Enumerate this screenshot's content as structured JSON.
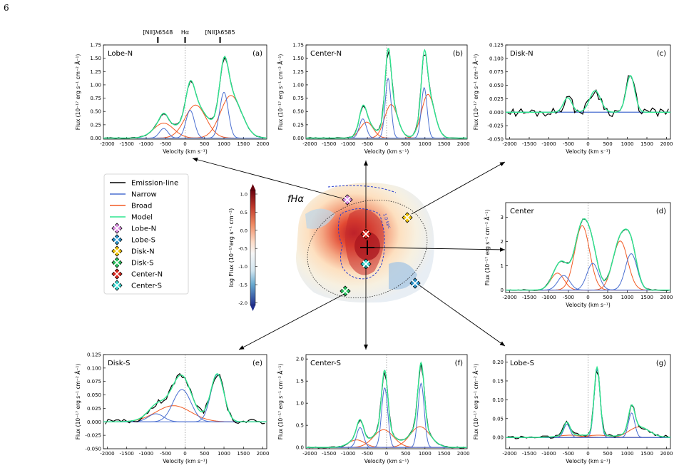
{
  "page": {
    "number": "6"
  },
  "lines": {
    "labels": [
      "[NII]λ6548",
      "Hα",
      "[NII]λ6585"
    ],
    "velocities": [
      -700,
      0,
      900
    ]
  },
  "xaxis": {
    "label": "Velocity (km s⁻¹)",
    "ticks": [
      -2000,
      -1500,
      -1000,
      -500,
      0,
      500,
      1000,
      1500,
      2000
    ]
  },
  "ylabel": "Flux (10⁻¹⁷ erg s⁻¹ cm⁻² Å⁻¹)",
  "colors": {
    "emission": "#000000",
    "narrow": "#4a6fd1",
    "broad": "#f25a23",
    "model": "#2ee58f"
  },
  "legend": [
    {
      "label": "Emission-line",
      "kind": "line",
      "color": "#000000"
    },
    {
      "label": "Narrow",
      "kind": "line",
      "color": "#4a6fd1"
    },
    {
      "label": "Broad",
      "kind": "line",
      "color": "#f25a23"
    },
    {
      "label": "Model",
      "kind": "line",
      "color": "#2ee58f"
    },
    {
      "label": "Lobe-N",
      "kind": "marker",
      "color": "#d98fe0"
    },
    {
      "label": "Lobe-S",
      "kind": "marker",
      "color": "#2a92c9"
    },
    {
      "label": "Disk-N",
      "kind": "marker",
      "color": "#f2c40c"
    },
    {
      "label": "Disk-S",
      "kind": "marker",
      "color": "#2bbf5e"
    },
    {
      "label": "Center-N",
      "kind": "marker",
      "color": "#d9261c"
    },
    {
      "label": "Center-S",
      "kind": "marker",
      "color": "#38d6cf"
    }
  ],
  "map": {
    "label": "fHα",
    "colorbar_label": "log Flux (10⁻¹⁷erg s⁻¹ cm⁻²)",
    "colorbar_ticks": [
      "1.0",
      "0.5",
      "0.0",
      "-0.5",
      "-1.0",
      "-1.5",
      "-2.0"
    ],
    "contour_label": "1.0 kpc"
  },
  "chart_data": [
    {
      "id": "a",
      "type": "line",
      "name": "Lobe-N",
      "tag": "(a)",
      "xlim": [
        -2100,
        2100
      ],
      "ylim": [
        -0.02,
        1.75
      ],
      "yticks": [
        "0.00",
        "0.25",
        "0.50",
        "0.75",
        "1.00",
        "1.25",
        "1.50",
        "1.75"
      ],
      "yvals": [
        0,
        0.25,
        0.5,
        0.75,
        1.0,
        1.25,
        1.5,
        1.75
      ],
      "narrow": [
        [
          -550,
          0.18,
          110
        ],
        [
          130,
          0.52,
          110
        ],
        [
          1000,
          0.86,
          110
        ]
      ],
      "broad": [
        [
          -550,
          0.28,
          260
        ],
        [
          270,
          0.62,
          270
        ],
        [
          1180,
          0.8,
          270
        ]
      ],
      "noise": 0.0,
      "show_lines": true
    },
    {
      "id": "b",
      "type": "line",
      "name": "Center-N",
      "tag": "(b)",
      "xlim": [
        -2100,
        2100
      ],
      "ylim": [
        -0.02,
        1.75
      ],
      "yticks": [
        "0.00",
        "0.25",
        "0.50",
        "0.75",
        "1.00",
        "1.25",
        "1.50",
        "1.75"
      ],
      "yvals": [
        0,
        0.25,
        0.5,
        0.75,
        1.0,
        1.25,
        1.5,
        1.75
      ],
      "narrow": [
        [
          -620,
          0.36,
          90
        ],
        [
          40,
          1.12,
          75
        ],
        [
          980,
          0.95,
          75
        ]
      ],
      "broad": [
        [
          -520,
          0.3,
          170
        ],
        [
          120,
          0.63,
          170
        ],
        [
          1080,
          0.82,
          170
        ]
      ],
      "noise": 0.0
    },
    {
      "id": "c",
      "type": "line",
      "name": "Disk-N",
      "tag": "(c)",
      "xlim": [
        -2100,
        2100
      ],
      "ylim": [
        -0.05,
        0.125
      ],
      "yticks": [
        "-0.050",
        "-0.025",
        "0.000",
        "0.025",
        "0.050",
        "0.075",
        "0.100",
        "0.125"
      ],
      "yvals": [
        -0.05,
        -0.025,
        0,
        0.025,
        0.05,
        0.075,
        0.1,
        0.125
      ],
      "narrow": [
        [
          -520,
          0.027,
          110
        ],
        [
          180,
          0.04,
          140
        ],
        [
          1080,
          0.068,
          110
        ]
      ],
      "broad": [],
      "noise": 0.007
    },
    {
      "id": "d",
      "type": "line",
      "name": "Center",
      "tag": "(d)",
      "xlim": [
        -2100,
        2100
      ],
      "ylim": [
        -0.1,
        3.6
      ],
      "yticks": [
        "0",
        "1",
        "2",
        "3"
      ],
      "yvals": [
        0,
        1,
        2,
        3
      ],
      "narrow": [
        [
          -620,
          0.6,
          150
        ],
        [
          120,
          1.1,
          150
        ],
        [
          1100,
          1.5,
          150
        ]
      ],
      "broad": [
        [
          -780,
          0.7,
          170
        ],
        [
          -150,
          2.65,
          190
        ],
        [
          820,
          2.02,
          190
        ]
      ],
      "noise": 0.0
    },
    {
      "id": "e",
      "type": "line",
      "name": "Disk-S",
      "tag": "(e)",
      "xlim": [
        -2100,
        2100
      ],
      "ylim": [
        -0.05,
        0.125
      ],
      "yticks": [
        "-0.050",
        "-0.025",
        "0.000",
        "0.025",
        "0.050",
        "0.075",
        "0.100",
        "0.125"
      ],
      "yvals": [
        -0.05,
        -0.025,
        0,
        0.025,
        0.05,
        0.075,
        0.1,
        0.125
      ],
      "narrow": [
        [
          -750,
          0.015,
          200
        ],
        [
          -80,
          0.06,
          230
        ],
        [
          830,
          0.088,
          170
        ]
      ],
      "broad": [
        [
          -300,
          0.03,
          450
        ]
      ],
      "noise": 0.004
    },
    {
      "id": "f",
      "type": "line",
      "name": "Center-S",
      "tag": "(f)",
      "xlim": [
        -2100,
        2100
      ],
      "ylim": [
        -0.03,
        2.1
      ],
      "yticks": [
        "0.0",
        "0.5",
        "1.0",
        "1.5",
        "2.0"
      ],
      "yvals": [
        0,
        0.5,
        1.0,
        1.5,
        2.0
      ],
      "narrow": [
        [
          -690,
          0.45,
          90
        ],
        [
          -50,
          1.35,
          80
        ],
        [
          900,
          1.45,
          80
        ]
      ],
      "broad": [
        [
          -780,
          0.17,
          210
        ],
        [
          -80,
          0.4,
          260
        ],
        [
          870,
          0.47,
          260
        ]
      ],
      "noise": 0.0
    },
    {
      "id": "g",
      "type": "line",
      "name": "Lobe-S",
      "tag": "(g)",
      "xlim": [
        -2100,
        2100
      ],
      "ylim": [
        -0.03,
        0.22
      ],
      "yticks": [
        "0.00",
        "0.05",
        "0.10",
        "0.15",
        "0.20"
      ],
      "yvals": [
        0,
        0.05,
        0.1,
        0.15,
        0.2
      ],
      "narrow": [
        [
          -540,
          0.035,
          80
        ],
        [
          230,
          0.18,
          75
        ],
        [
          1110,
          0.065,
          80
        ]
      ],
      "broad": [
        [
          -450,
          0.006,
          300
        ],
        [
          250,
          0.006,
          300
        ],
        [
          1300,
          0.028,
          260
        ]
      ],
      "noise": 0.004
    }
  ]
}
